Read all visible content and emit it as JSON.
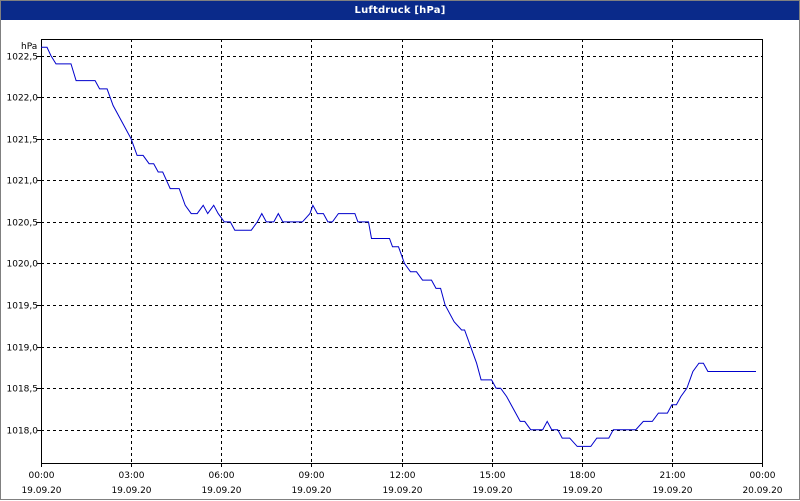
{
  "title": "Luftdruck [hPa]",
  "chart_data": {
    "type": "line",
    "title": "Luftdruck [hPa]",
    "ylabel": "hPa",
    "xlabel": "",
    "ylim": [
      1017.6,
      1022.7
    ],
    "xlim": [
      0,
      24
    ],
    "grid": true,
    "y_ticks": [
      {
        "value": 1018.0,
        "label": "1018,0"
      },
      {
        "value": 1018.5,
        "label": "1018,5"
      },
      {
        "value": 1019.0,
        "label": "1019,0"
      },
      {
        "value": 1019.5,
        "label": "1019,5"
      },
      {
        "value": 1020.0,
        "label": "1020,0"
      },
      {
        "value": 1020.5,
        "label": "1020,5"
      },
      {
        "value": 1021.0,
        "label": "1021,0"
      },
      {
        "value": 1021.5,
        "label": "1021,5"
      },
      {
        "value": 1022.0,
        "label": "1022,0"
      },
      {
        "value": 1022.5,
        "label": "1022,5"
      }
    ],
    "x_ticks": [
      {
        "hour": 0,
        "time": "00:00",
        "date": "19.09.20"
      },
      {
        "hour": 3,
        "time": "03:00",
        "date": "19.09.20"
      },
      {
        "hour": 6,
        "time": "06:00",
        "date": "19.09.20"
      },
      {
        "hour": 9,
        "time": "09:00",
        "date": "19.09.20"
      },
      {
        "hour": 12,
        "time": "12:00",
        "date": "19.09.20"
      },
      {
        "hour": 15,
        "time": "15:00",
        "date": "19.09.20"
      },
      {
        "hour": 18,
        "time": "18:00",
        "date": "19.09.20"
      },
      {
        "hour": 21,
        "time": "21:00",
        "date": "19.09.20"
      },
      {
        "hour": 24,
        "time": "00:00",
        "date": "20.09.20"
      }
    ],
    "series": [
      {
        "color": "#0000cc",
        "points": [
          [
            0.0,
            1022.6
          ],
          [
            0.2,
            1022.6
          ],
          [
            0.33,
            1022.5
          ],
          [
            0.5,
            1022.4
          ],
          [
            0.7,
            1022.4
          ],
          [
            1.0,
            1022.4
          ],
          [
            1.17,
            1022.2
          ],
          [
            1.5,
            1022.2
          ],
          [
            1.8,
            1022.2
          ],
          [
            1.95,
            1022.1
          ],
          [
            2.2,
            1022.1
          ],
          [
            2.4,
            1021.9
          ],
          [
            2.7,
            1021.7
          ],
          [
            3.0,
            1021.5
          ],
          [
            3.2,
            1021.3
          ],
          [
            3.4,
            1021.3
          ],
          [
            3.6,
            1021.2
          ],
          [
            3.75,
            1021.2
          ],
          [
            3.9,
            1021.1
          ],
          [
            4.05,
            1021.1
          ],
          [
            4.3,
            1020.9
          ],
          [
            4.6,
            1020.9
          ],
          [
            4.8,
            1020.7
          ],
          [
            5.0,
            1020.6
          ],
          [
            5.2,
            1020.6
          ],
          [
            5.4,
            1020.7
          ],
          [
            5.55,
            1020.6
          ],
          [
            5.75,
            1020.7
          ],
          [
            5.9,
            1020.6
          ],
          [
            6.1,
            1020.5
          ],
          [
            6.3,
            1020.5
          ],
          [
            6.45,
            1020.4
          ],
          [
            6.7,
            1020.4
          ],
          [
            7.0,
            1020.4
          ],
          [
            7.2,
            1020.5
          ],
          [
            7.35,
            1020.6
          ],
          [
            7.5,
            1020.5
          ],
          [
            7.75,
            1020.5
          ],
          [
            7.9,
            1020.6
          ],
          [
            8.05,
            1020.5
          ],
          [
            8.4,
            1020.5
          ],
          [
            8.7,
            1020.5
          ],
          [
            8.95,
            1020.6
          ],
          [
            9.05,
            1020.7
          ],
          [
            9.2,
            1020.6
          ],
          [
            9.4,
            1020.6
          ],
          [
            9.55,
            1020.5
          ],
          [
            9.7,
            1020.5
          ],
          [
            9.9,
            1020.6
          ],
          [
            10.2,
            1020.6
          ],
          [
            10.45,
            1020.6
          ],
          [
            10.55,
            1020.5
          ],
          [
            10.9,
            1020.5
          ],
          [
            11.0,
            1020.3
          ],
          [
            11.3,
            1020.3
          ],
          [
            11.6,
            1020.3
          ],
          [
            11.7,
            1020.2
          ],
          [
            11.9,
            1020.2
          ],
          [
            12.1,
            1020.0
          ],
          [
            12.3,
            1019.9
          ],
          [
            12.5,
            1019.9
          ],
          [
            12.7,
            1019.8
          ],
          [
            13.0,
            1019.8
          ],
          [
            13.15,
            1019.7
          ],
          [
            13.3,
            1019.7
          ],
          [
            13.45,
            1019.5
          ],
          [
            13.75,
            1019.3
          ],
          [
            14.0,
            1019.2
          ],
          [
            14.1,
            1019.2
          ],
          [
            14.3,
            1019.0
          ],
          [
            14.5,
            1018.8
          ],
          [
            14.65,
            1018.6
          ],
          [
            14.75,
            1018.6
          ],
          [
            15.0,
            1018.6
          ],
          [
            15.15,
            1018.5
          ],
          [
            15.3,
            1018.5
          ],
          [
            15.5,
            1018.4
          ],
          [
            15.8,
            1018.2
          ],
          [
            15.95,
            1018.1
          ],
          [
            16.1,
            1018.1
          ],
          [
            16.3,
            1018.0
          ],
          [
            16.5,
            1018.0
          ],
          [
            16.7,
            1018.0
          ],
          [
            16.85,
            1018.1
          ],
          [
            17.0,
            1018.0
          ],
          [
            17.2,
            1018.0
          ],
          [
            17.35,
            1017.9
          ],
          [
            17.6,
            1017.9
          ],
          [
            17.85,
            1017.8
          ],
          [
            18.0,
            1017.8
          ],
          [
            18.3,
            1017.8
          ],
          [
            18.5,
            1017.9
          ],
          [
            18.7,
            1017.9
          ],
          [
            18.9,
            1017.9
          ],
          [
            19.05,
            1018.0
          ],
          [
            19.3,
            1018.0
          ],
          [
            19.8,
            1018.0
          ],
          [
            20.05,
            1018.1
          ],
          [
            20.35,
            1018.1
          ],
          [
            20.55,
            1018.2
          ],
          [
            20.85,
            1018.2
          ],
          [
            21.0,
            1018.3
          ],
          [
            21.15,
            1018.3
          ],
          [
            21.3,
            1018.4
          ],
          [
            21.5,
            1018.5
          ],
          [
            21.7,
            1018.7
          ],
          [
            21.9,
            1018.8
          ],
          [
            22.05,
            1018.8
          ],
          [
            22.2,
            1018.7
          ],
          [
            22.4,
            1018.7
          ],
          [
            22.8,
            1018.7
          ],
          [
            23.2,
            1018.7
          ],
          [
            23.6,
            1018.7
          ],
          [
            23.8,
            1018.7
          ]
        ]
      }
    ]
  }
}
